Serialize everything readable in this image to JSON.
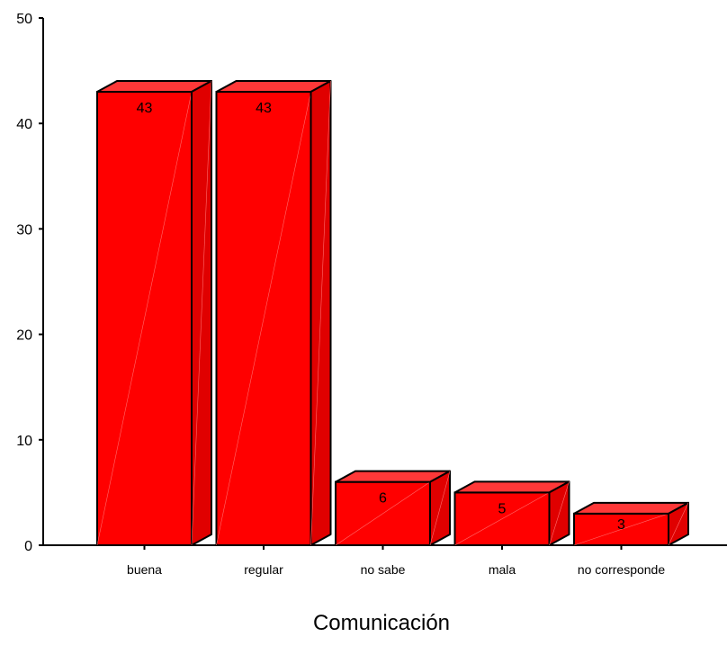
{
  "chart_data": {
    "type": "bar",
    "style": "3d",
    "categories": [
      "buena",
      "regular",
      "no sabe",
      "mala",
      "no corresponde"
    ],
    "values": [
      43,
      43,
      6,
      5,
      3
    ],
    "data_labels": [
      "43",
      "43",
      "6",
      "5",
      "3"
    ],
    "title": "",
    "xlabel": "Comunicación",
    "ylabel": "",
    "ylim": [
      0,
      50
    ],
    "yticks": [
      0,
      10,
      20,
      30,
      40,
      50
    ],
    "grid": false,
    "legend": "none",
    "colors": {
      "bar_front": "#ff0000",
      "bar_top": "#ff3838",
      "bar_side": "#e00000",
      "outline": "#000000",
      "axis": "#000000"
    }
  }
}
